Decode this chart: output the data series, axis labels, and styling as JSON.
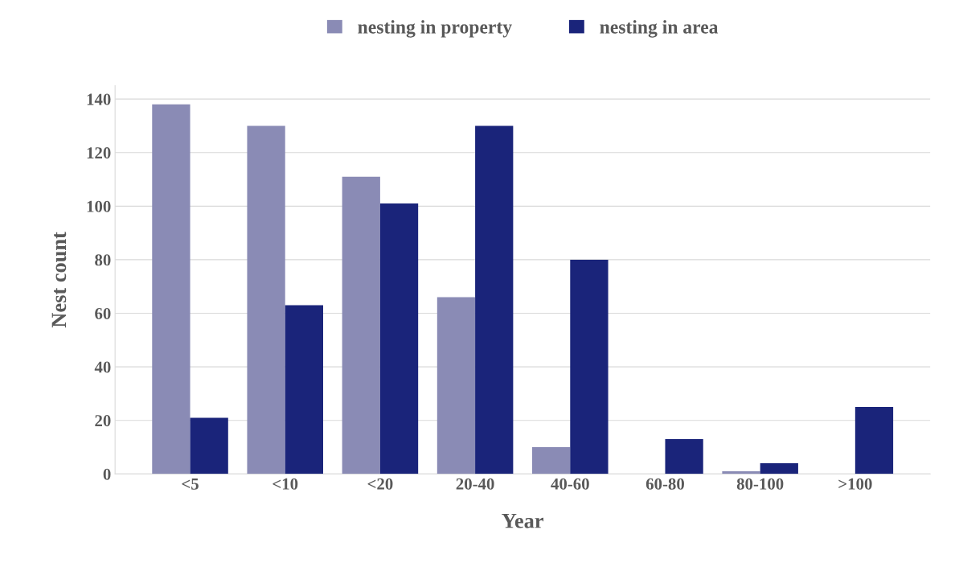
{
  "chart_data": {
    "type": "bar",
    "xlabel": "Year",
    "ylabel": "Nest count",
    "categories": [
      "<5",
      "<10",
      "<20",
      "20-40",
      "40-60",
      "60-80",
      "80-100",
      ">100"
    ],
    "series": [
      {
        "name": "nesting in property",
        "color": "#8a8bb5",
        "values": [
          138,
          130,
          111,
          66,
          10,
          0,
          1,
          0
        ]
      },
      {
        "name": "nesting in area",
        "color": "#1a247a",
        "values": [
          21,
          63,
          101,
          130,
          80,
          13,
          4,
          25
        ]
      }
    ],
    "ylim": [
      0,
      145
    ],
    "yticks": [
      0,
      20,
      40,
      60,
      80,
      100,
      120,
      140
    ],
    "grid": "y",
    "legend": "top"
  }
}
